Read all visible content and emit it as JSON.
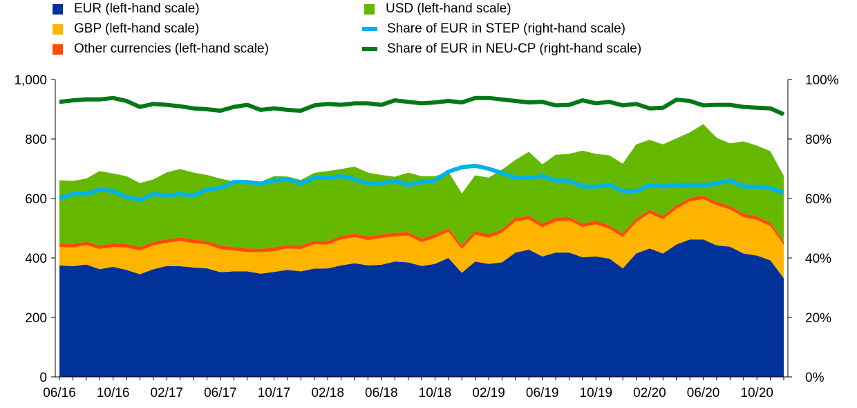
{
  "chart_data": {
    "type": "area",
    "x": [
      "06/16",
      "07/16",
      "08/16",
      "09/16",
      "10/16",
      "11/16",
      "12/16",
      "01/17",
      "02/17",
      "03/17",
      "04/17",
      "05/17",
      "06/17",
      "07/17",
      "08/17",
      "09/17",
      "10/17",
      "11/17",
      "12/17",
      "01/18",
      "02/18",
      "03/18",
      "04/18",
      "05/18",
      "06/18",
      "07/18",
      "08/18",
      "09/18",
      "10/18",
      "11/18",
      "12/18",
      "01/19",
      "02/19",
      "03/19",
      "04/19",
      "05/19",
      "06/19",
      "07/19",
      "08/19",
      "09/19",
      "10/19",
      "11/19",
      "12/19",
      "01/20",
      "02/20",
      "03/20",
      "04/20",
      "05/20",
      "06/20",
      "07/20",
      "08/20",
      "09/20",
      "10/20",
      "11/20",
      "12/20"
    ],
    "x_tick_labels": [
      "06/16",
      "10/16",
      "02/17",
      "06/17",
      "10/17",
      "02/18",
      "06/18",
      "10/18",
      "02/19",
      "06/19",
      "10/19",
      "02/20",
      "06/20",
      "10/20"
    ],
    "left_axis": {
      "min": 0,
      "max": 1000,
      "ticks": [
        "0",
        "200",
        "400",
        "600",
        "800",
        "1,000"
      ]
    },
    "right_axis": {
      "min": 0,
      "max": 100,
      "ticks": [
        "0%",
        "20%",
        "40%",
        "60%",
        "80%",
        "100%"
      ]
    },
    "stacked_series": [
      {
        "name": "EUR (left-hand scale)",
        "color": "#003299",
        "values": [
          375,
          372,
          378,
          362,
          370,
          360,
          345,
          362,
          373,
          372,
          368,
          365,
          352,
          355,
          355,
          347,
          353,
          360,
          355,
          364,
          365,
          375,
          382,
          375,
          377,
          388,
          385,
          373,
          380,
          400,
          350,
          388,
          380,
          385,
          418,
          428,
          405,
          418,
          418,
          402,
          405,
          398,
          365,
          415,
          432,
          415,
          445,
          462,
          462,
          442,
          438,
          415,
          408,
          392,
          332
        ]
      },
      {
        "name": "GBP (left-hand scale)",
        "color": "#FFB400",
        "values": [
          62,
          63,
          65,
          68,
          67,
          75,
          80,
          80,
          78,
          85,
          82,
          80,
          78,
          70,
          65,
          72,
          70,
          72,
          75,
          82,
          80,
          87,
          88,
          85,
          90,
          85,
          90,
          80,
          88,
          88,
          80,
          90,
          88,
          100,
          105,
          102,
          98,
          105,
          108,
          102,
          108,
          100,
          105,
          105,
          118,
          115,
          120,
          128,
          136,
          135,
          125,
          122,
          120,
          115,
          112
        ]
      },
      {
        "name": "Other currencies (left-hand scale)",
        "color": "#FF4B00",
        "values": [
          12,
          12,
          12,
          12,
          12,
          12,
          12,
          12,
          12,
          12,
          12,
          12,
          12,
          12,
          12,
          12,
          12,
          12,
          12,
          12,
          12,
          12,
          12,
          12,
          12,
          12,
          12,
          12,
          12,
          12,
          12,
          12,
          12,
          12,
          12,
          12,
          12,
          12,
          12,
          12,
          12,
          12,
          12,
          12,
          12,
          12,
          12,
          12,
          12,
          12,
          12,
          12,
          12,
          12,
          12
        ]
      },
      {
        "name": "USD (left-hand scale)",
        "color": "#65B800",
        "values": [
          212,
          212,
          212,
          250,
          235,
          228,
          215,
          210,
          225,
          230,
          225,
          222,
          225,
          220,
          230,
          225,
          240,
          230,
          220,
          228,
          235,
          225,
          225,
          215,
          200,
          188,
          200,
          210,
          195,
          190,
          175,
          188,
          190,
          200,
          195,
          215,
          200,
          212,
          212,
          245,
          225,
          235,
          235,
          250,
          235,
          240,
          225,
          220,
          240,
          215,
          210,
          243,
          238,
          240,
          220
        ]
      }
    ],
    "line_series": [
      {
        "name": "Share of EUR in STEP (right-hand scale)",
        "color": "#00B1EA",
        "values": [
          60,
          61.5,
          61.5,
          63,
          62.5,
          60.5,
          59.5,
          61.5,
          61,
          61.5,
          61,
          63,
          63.5,
          65.5,
          65.5,
          65,
          66,
          66.5,
          65,
          67,
          67,
          67.5,
          66.5,
          65,
          65,
          66,
          64.5,
          65.5,
          66,
          69,
          70.5,
          71,
          70,
          68.5,
          67,
          67,
          67.5,
          66,
          66,
          64,
          64,
          64.5,
          62.5,
          62.5,
          64.5,
          64,
          64.5,
          64.5,
          64.5,
          65,
          66,
          64,
          64,
          63.5,
          62
        ]
      },
      {
        "name": "Share of EUR in NEU-CP (right-hand scale)",
        "color": "#007816",
        "values": [
          92.5,
          93,
          93.3,
          93.3,
          93.8,
          92.8,
          90.8,
          91.8,
          91.5,
          91,
          90.3,
          90,
          89.5,
          90.8,
          91.5,
          89.8,
          90.3,
          89.8,
          89.5,
          91.3,
          91.8,
          91.5,
          92,
          92,
          91.5,
          93,
          92.5,
          92,
          92.3,
          92.8,
          92.3,
          93.8,
          93.8,
          93.3,
          92.8,
          92.3,
          92.5,
          91.3,
          91.5,
          93,
          92,
          92.5,
          91.3,
          91.8,
          90.3,
          90.5,
          93.2,
          92.8,
          91.3,
          91.5,
          91.5,
          90.8,
          90.5,
          90.3,
          88.3
        ]
      }
    ],
    "legend": [
      {
        "label": "EUR (left-hand scale)",
        "color": "#003299",
        "kind": "box"
      },
      {
        "label": "USD (left-hand scale)",
        "color": "#65B800",
        "kind": "box"
      },
      {
        "label": "GBP (left-hand scale)",
        "color": "#FFB400",
        "kind": "box"
      },
      {
        "label": "Share of EUR in STEP (right-hand scale)",
        "color": "#00B1EA",
        "kind": "line"
      },
      {
        "label": "Other currencies (left-hand scale)",
        "color": "#FF4B00",
        "kind": "box"
      },
      {
        "label": "Share of EUR in NEU-CP (right-hand scale)",
        "color": "#007816",
        "kind": "line"
      }
    ],
    "legend_placement": "top",
    "grid": false
  }
}
